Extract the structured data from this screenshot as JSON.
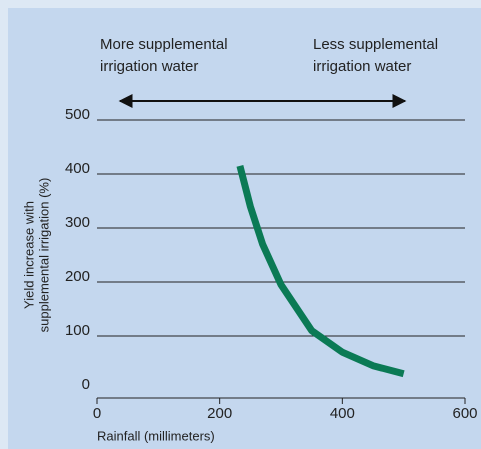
{
  "chart_data": {
    "type": "line",
    "annotations": [
      {
        "lines": [
          "More supplemental",
          "irrigation water"
        ]
      },
      {
        "lines": [
          "Less supplemental",
          "irrigation water"
        ]
      }
    ],
    "y_label": [
      "Yield increase with",
      "supplemental irrigation (%)"
    ],
    "x_label": "Rainfall (millimeters)",
    "x": [
      233,
      250,
      270,
      300,
      350,
      400,
      450,
      500
    ],
    "series": [
      {
        "name": "Yield increase",
        "color": "#0b7a55",
        "values": [
          415,
          340,
          270,
          195,
          110,
          70,
          45,
          30
        ]
      }
    ],
    "xlim": [
      0,
      600
    ],
    "xticks": [
      0,
      200,
      400,
      600
    ],
    "ylim": [
      0,
      500
    ],
    "yticks": [
      0,
      100,
      200,
      300,
      400,
      500
    ],
    "grid": true
  }
}
